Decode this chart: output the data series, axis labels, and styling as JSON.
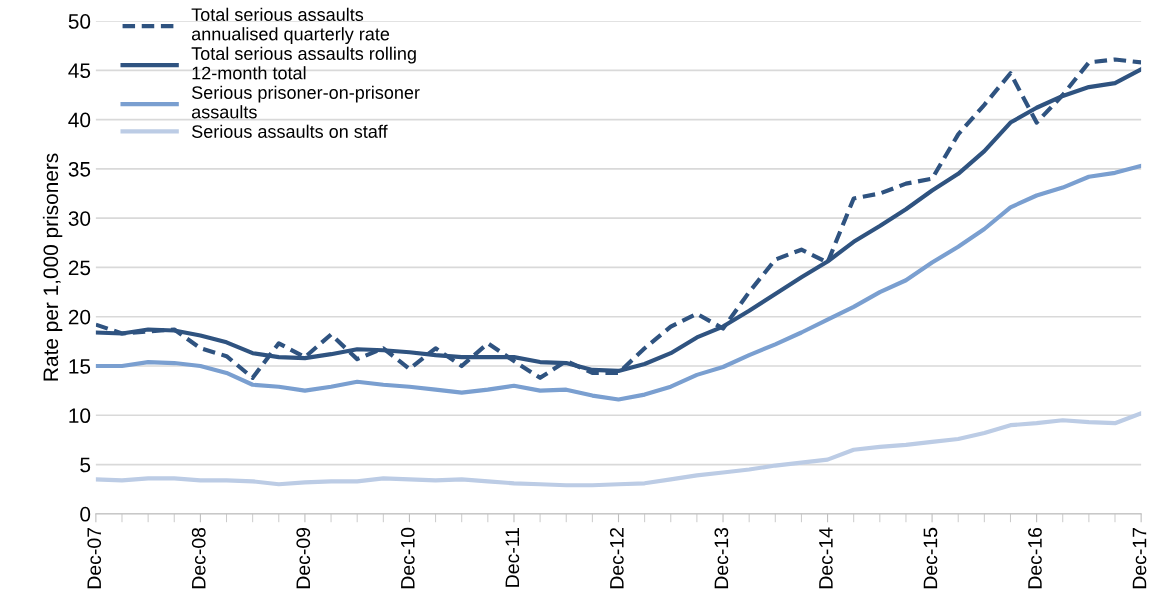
{
  "chart_data": {
    "type": "line",
    "ylabel": "Rate per 1,000 prisoners",
    "categories": [
      "Dec-07",
      null,
      null,
      null,
      "Dec-08",
      null,
      null,
      null,
      "Dec-09",
      null,
      null,
      null,
      "Dec-10",
      null,
      null,
      null,
      "Dec-11",
      null,
      null,
      null,
      "Dec-12",
      null,
      null,
      null,
      "Dec-13",
      null,
      null,
      null,
      "Dec-14",
      null,
      null,
      null,
      "Dec-15",
      null,
      null,
      null,
      "Dec-16",
      null,
      null,
      null,
      "Dec-17"
    ],
    "series": [
      {
        "name": "Total serious assaults annualised quarterly rate",
        "color": "#2f5380",
        "line_style": "dashed",
        "values": [
          19.2,
          18.3,
          18.5,
          18.7,
          16.8,
          16,
          13.8,
          17.3,
          15.9,
          18.2,
          15.7,
          16.8,
          14.7,
          16.8,
          15,
          17.3,
          15.5,
          13.8,
          15.5,
          14.3,
          14.3,
          16.8,
          19,
          20.3,
          18.8,
          22.5,
          25.8,
          26.8,
          25.5,
          32,
          32.5,
          33.5,
          34,
          38.5,
          41.5,
          44.7,
          39.7,
          42.5,
          45.8,
          46.1,
          45.8
        ]
      },
      {
        "name": "Total serious assaults rolling 12-month total",
        "color": "#2f5380",
        "line_style": "solid",
        "values": [
          18.4,
          18.3,
          18.7,
          18.6,
          18.1,
          17.4,
          16.3,
          15.9,
          15.8,
          16.2,
          16.7,
          16.6,
          16.4,
          16.1,
          15.9,
          15.9,
          15.9,
          15.4,
          15.3,
          14.6,
          14.5,
          15.2,
          16.3,
          17.9,
          19,
          20.6,
          22.3,
          24,
          25.6,
          27.6,
          29.2,
          30.9,
          32.8,
          34.5,
          36.8,
          39.7,
          41.2,
          42.4,
          43.3,
          43.7,
          45.1
        ]
      },
      {
        "name": "Serious prisoner-on-prisoner assaults",
        "color": "#7a9fd0",
        "line_style": "solid",
        "values": [
          15,
          15,
          15.4,
          15.3,
          15,
          14.3,
          13.1,
          12.9,
          12.5,
          12.9,
          13.4,
          13.1,
          12.9,
          12.6,
          12.3,
          12.6,
          13,
          12.5,
          12.6,
          12,
          11.6,
          12.1,
          12.9,
          14.1,
          14.9,
          16.1,
          17.2,
          18.4,
          19.7,
          21,
          22.5,
          23.7,
          25.5,
          27.1,
          28.9,
          31.1,
          32.3,
          33.1,
          34.2,
          34.6,
          35.3
        ]
      },
      {
        "name": "Serious assaults on staff",
        "color": "#bccce5",
        "line_style": "solid",
        "values": [
          3.5,
          3.4,
          3.6,
          3.6,
          3.4,
          3.4,
          3.3,
          3.0,
          3.2,
          3.3,
          3.3,
          3.6,
          3.5,
          3.4,
          3.5,
          3.3,
          3.1,
          3.0,
          2.9,
          2.9,
          3.0,
          3.1,
          3.5,
          3.9,
          4.2,
          4.5,
          4.9,
          5.2,
          5.5,
          6.5,
          6.8,
          7.0,
          7.3,
          7.6,
          8.2,
          9.0,
          9.2,
          9.5,
          9.3,
          9.2,
          10.2
        ]
      }
    ],
    "ylim": [
      0,
      50
    ],
    "yticks": [
      0,
      5,
      10,
      15,
      20,
      25,
      30,
      35,
      40,
      45,
      50
    ],
    "grid": "y",
    "legend": "top left",
    "marker": "none"
  }
}
